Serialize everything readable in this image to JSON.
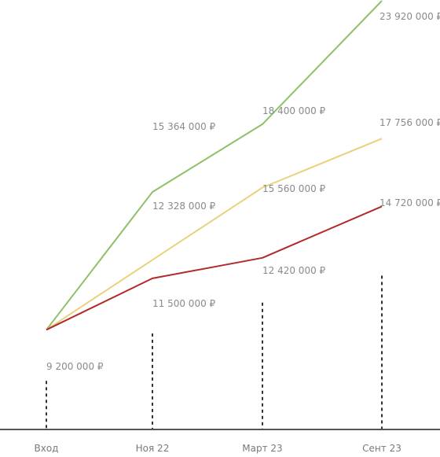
{
  "chart_data": {
    "type": "line",
    "categories": [
      "Вход",
      "Ноя 22",
      "Март 23",
      "Сент 23"
    ],
    "series": [
      {
        "values": [
          9200000,
          15364000,
          18400000,
          23920000
        ],
        "color": "#8fc06a"
      },
      {
        "values": [
          9200000,
          12328000,
          15560000,
          17756000
        ],
        "color": "#e8d27d"
      },
      {
        "values": [
          9200000,
          11500000,
          12420000,
          14720000
        ],
        "color": "#b22a2a"
      }
    ],
    "labels": {
      "start": "9 200 000 ₽",
      "green": [
        "15 364 000 ₽",
        "18 400 000 ₽",
        "23 920 000 ₽"
      ],
      "yellow": [
        "12 328 000 ₽",
        "15 560 000 ₽",
        "17 756 000 ₽"
      ],
      "red": [
        "11 500 000 ₽",
        "12 420 000 ₽",
        "14 720 000 ₽"
      ]
    },
    "ylim": [
      4740000,
      23920000
    ],
    "grid": false,
    "axis_color": "#555555",
    "dash_color": "#333333",
    "label_color": "#8a8a8a"
  }
}
